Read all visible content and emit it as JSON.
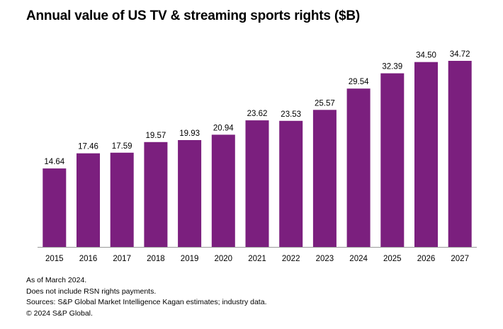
{
  "chart_data": {
    "type": "bar",
    "title": "Annual value of US TV & streaming sports rights ($B)",
    "categories": [
      "2015",
      "2016",
      "2017",
      "2018",
      "2019",
      "2020",
      "2021",
      "2022",
      "2023",
      "2024",
      "2025",
      "2026",
      "2027"
    ],
    "values": [
      14.64,
      17.46,
      17.59,
      19.57,
      19.93,
      20.94,
      23.62,
      23.53,
      25.57,
      29.54,
      32.39,
      34.5,
      34.72
    ],
    "value_labels": [
      "14.64",
      "17.46",
      "17.59",
      "19.57",
      "19.93",
      "20.94",
      "23.62",
      "23.53",
      "25.57",
      "29.54",
      "32.39",
      "34.50",
      "34.72"
    ],
    "xlabel": "",
    "ylabel": "",
    "ylim": [
      0,
      34.72
    ],
    "grid": false,
    "legend": "none",
    "bar_color": "#7b1f7e",
    "axis_color": "#9a9a9a"
  },
  "footnotes": [
    "As of March 2024.",
    "Does not include RSN rights payments.",
    "Sources: S&P Global Market Intelligence Kagan estimates; industry data.",
    "© 2024 S&P Global."
  ]
}
